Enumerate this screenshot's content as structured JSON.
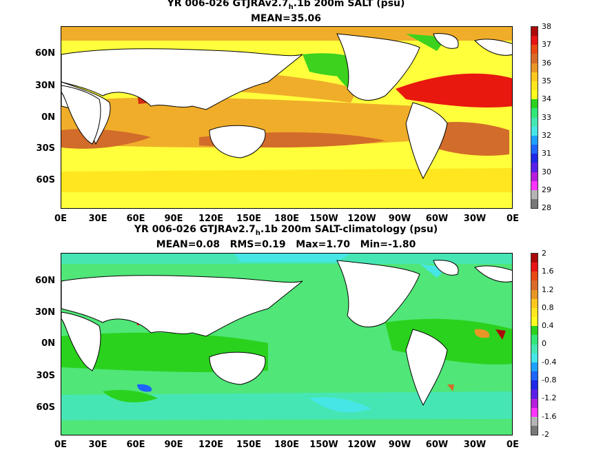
{
  "panel1": {
    "title_pre": "YR 006-026 GTJRAv2.7",
    "title_sub": "h",
    "title_post": ".1b 200m SALT (psu)",
    "stats": "MEAN=35.06",
    "colorbar_labels": [
      "38",
      "37",
      "36",
      "35",
      "34",
      "33",
      "32",
      "31",
      "30",
      "29",
      "28"
    ],
    "colorbar_colors": [
      "#aa0a0a",
      "#e61414",
      "#e84a14",
      "#d96b2a",
      "#e89626",
      "#ffc81e",
      "#ffe61e",
      "#ffff1e",
      "#2ad21e",
      "#32e678",
      "#46e6b4",
      "#46e6e6",
      "#1ea0ff",
      "#1e64ff",
      "#1e28e6",
      "#5a1ee6",
      "#b41edc",
      "#ff32ff",
      "#b4b4b4",
      "#787878"
    ]
  },
  "panel2": {
    "title_pre": "YR 006-026 GTJRAv2.7",
    "title_sub": "h",
    "title_post": ".1b 200m SALT-climatology (psu)",
    "stats": "MEAN=0.08   RMS=0.19   Max=1.70   Min=-1.80",
    "colorbar_labels": [
      "2",
      "1.6",
      "1.2",
      "0.8",
      "0.4",
      "0",
      "-0.4",
      "-0.8",
      "-1.2",
      "-1.6",
      "-2"
    ],
    "colorbar_colors": [
      "#aa0a0a",
      "#e61414",
      "#e84a14",
      "#d96b2a",
      "#e89626",
      "#ffc81e",
      "#ffe61e",
      "#ffff1e",
      "#2ad21e",
      "#32e678",
      "#46e6b4",
      "#46e6e6",
      "#1ea0ff",
      "#1e64ff",
      "#1e28e6",
      "#5a1ee6",
      "#b41edc",
      "#ff32ff",
      "#b4b4b4",
      "#787878"
    ]
  },
  "y_labels": [
    "60N",
    "30N",
    "0N",
    "30S",
    "60S"
  ],
  "x_labels": [
    "0E",
    "30E",
    "60E",
    "90E",
    "120E",
    "150E",
    "180E",
    "150W",
    "120W",
    "90W",
    "60W",
    "30W",
    "0E"
  ]
}
